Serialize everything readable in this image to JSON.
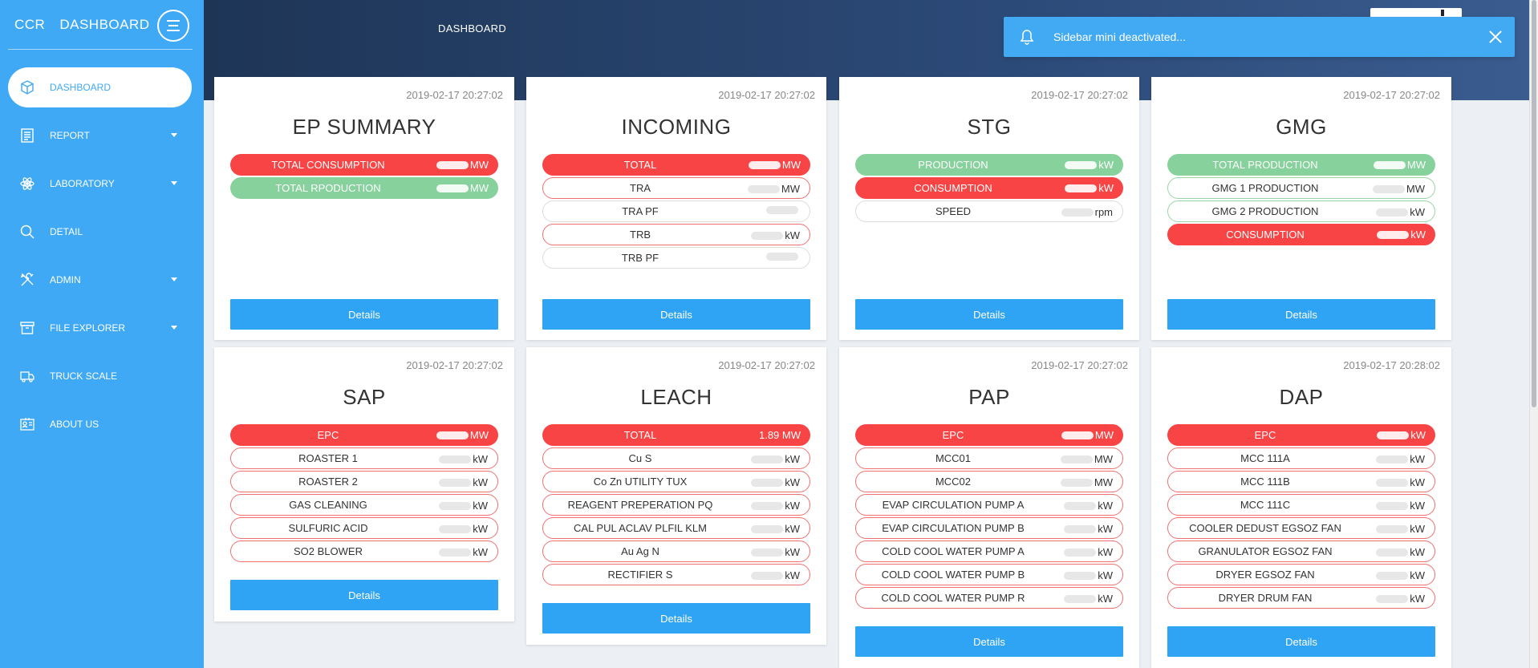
{
  "sidebar": {
    "brand_short": "CCR",
    "brand_title": "DASHBOARD",
    "items": [
      {
        "label": "DASHBOARD",
        "icon": "cube-icon"
      },
      {
        "label": "REPORT",
        "icon": "report-icon"
      },
      {
        "label": "LABORATORY",
        "icon": "atom-icon"
      },
      {
        "label": "DETAIL",
        "icon": "search-icon"
      },
      {
        "label": "ADMIN",
        "icon": "tools-icon"
      },
      {
        "label": "FILE EXPLORER",
        "icon": "archive-icon"
      },
      {
        "label": "TRUCK SCALE",
        "icon": "truck-icon"
      },
      {
        "label": "ABOUT US",
        "icon": "contact-card-icon"
      }
    ]
  },
  "header": {
    "title": "DASHBOARD"
  },
  "notification": {
    "text": "Sidebar mini deactivated..."
  },
  "cards": [
    {
      "time": "2019-02-17 20:27:02",
      "title": "EP SUMMARY",
      "details": "Details",
      "rows": [
        {
          "label": "TOTAL CONSUMPTION",
          "unit": "MW",
          "style": "red"
        },
        {
          "label": "TOTAL RPODUCTION",
          "unit": "MW",
          "style": "green"
        }
      ]
    },
    {
      "time": "2019-02-17 20:27:02",
      "title": "INCOMING",
      "details": "Details",
      "rows": [
        {
          "label": "TOTAL",
          "unit": "MW",
          "style": "red"
        },
        {
          "label": "TRA",
          "unit": "MW",
          "style": "ored"
        },
        {
          "label": "TRA PF",
          "unit": "",
          "style": "ogray"
        },
        {
          "label": "TRB",
          "unit": "kW",
          "style": "ored"
        },
        {
          "label": "TRB PF",
          "unit": "",
          "style": "ogray"
        }
      ]
    },
    {
      "time": "2019-02-17 20:27:02",
      "title": "STG",
      "details": "Details",
      "rows": [
        {
          "label": "PRODUCTION",
          "unit": "kW",
          "style": "green"
        },
        {
          "label": "CONSUMPTION",
          "unit": "kW",
          "style": "red"
        },
        {
          "label": "SPEED",
          "unit": "rpm",
          "style": "ogray"
        }
      ]
    },
    {
      "time": "2019-02-17 20:27:02",
      "title": "GMG",
      "details": "Details",
      "rows": [
        {
          "label": "TOTAL PRODUCTION",
          "unit": "MW",
          "style": "green"
        },
        {
          "label": "GMG 1 PRODUCTION",
          "unit": "MW",
          "style": "ogreen"
        },
        {
          "label": "GMG 2 PRODUCTION",
          "unit": "kW",
          "style": "ogreen"
        },
        {
          "label": "CONSUMPTION",
          "unit": "kW",
          "style": "red"
        }
      ]
    },
    {
      "time": "2019-02-17 20:27:02",
      "title": "SAP",
      "details": "Details",
      "rows": [
        {
          "label": "EPC",
          "unit": "MW",
          "style": "red"
        },
        {
          "label": "ROASTER 1",
          "unit": "kW",
          "style": "ored"
        },
        {
          "label": "ROASTER 2",
          "unit": "kW",
          "style": "ored"
        },
        {
          "label": "GAS CLEANING",
          "unit": "kW",
          "style": "ored"
        },
        {
          "label": "SULFURIC ACID",
          "unit": "kW",
          "style": "ored"
        },
        {
          "label": "SO2 BLOWER",
          "unit": "kW",
          "style": "ored"
        }
      ]
    },
    {
      "time": "2019-02-17 20:27:02",
      "title": "LEACH",
      "details": "Details",
      "rows": [
        {
          "label": "TOTAL",
          "unit": "1.89 MW",
          "style": "red"
        },
        {
          "label": "Cu S",
          "unit": "kW",
          "style": "ored"
        },
        {
          "label": "Co Zn UTILITY TUX",
          "unit": "kW",
          "style": "ored"
        },
        {
          "label": "REAGENT PREPERATION PQ",
          "unit": "kW",
          "style": "ored"
        },
        {
          "label": "CAL PUL ACLAV PLFIL KLM",
          "unit": "kW",
          "style": "ored"
        },
        {
          "label": "Au Ag N",
          "unit": "kW",
          "style": "ored"
        },
        {
          "label": "RECTIFIER S",
          "unit": "kW",
          "style": "ored"
        }
      ]
    },
    {
      "time": "2019-02-17 20:27:02",
      "title": "PAP",
      "details": "Details",
      "rows": [
        {
          "label": "EPC",
          "unit": "MW",
          "style": "red"
        },
        {
          "label": "MCC01",
          "unit": "MW",
          "style": "ored"
        },
        {
          "label": "MCC02",
          "unit": "MW",
          "style": "ored"
        },
        {
          "label": "EVAP CIRCULATION PUMP A",
          "unit": "kW",
          "style": "ored"
        },
        {
          "label": "EVAP CIRCULATION PUMP B",
          "unit": "kW",
          "style": "ored"
        },
        {
          "label": "COLD COOL WATER PUMP A",
          "unit": "kW",
          "style": "ored"
        },
        {
          "label": "COLD COOL WATER PUMP B",
          "unit": "kW",
          "style": "ored"
        },
        {
          "label": "COLD COOL WATER PUMP R",
          "unit": "kW",
          "style": "ored"
        }
      ]
    },
    {
      "time": "2019-02-17 20:28:02",
      "title": "DAP",
      "details": "Details",
      "rows": [
        {
          "label": "EPC",
          "unit": "kW",
          "style": "red"
        },
        {
          "label": "MCC 111A",
          "unit": "kW",
          "style": "ored"
        },
        {
          "label": "MCC 111B",
          "unit": "kW",
          "style": "ored"
        },
        {
          "label": "MCC 111C",
          "unit": "kW",
          "style": "ored"
        },
        {
          "label": "COOLER DEDUST EGSOZ FAN",
          "unit": "kW",
          "style": "ored"
        },
        {
          "label": "GRANULATOR EGSOZ FAN",
          "unit": "kW",
          "style": "ored"
        },
        {
          "label": "DRYER EGSOZ FAN",
          "unit": "kW",
          "style": "ored"
        },
        {
          "label": "DRYER DRUM FAN",
          "unit": "kW",
          "style": "ored"
        }
      ]
    }
  ]
}
